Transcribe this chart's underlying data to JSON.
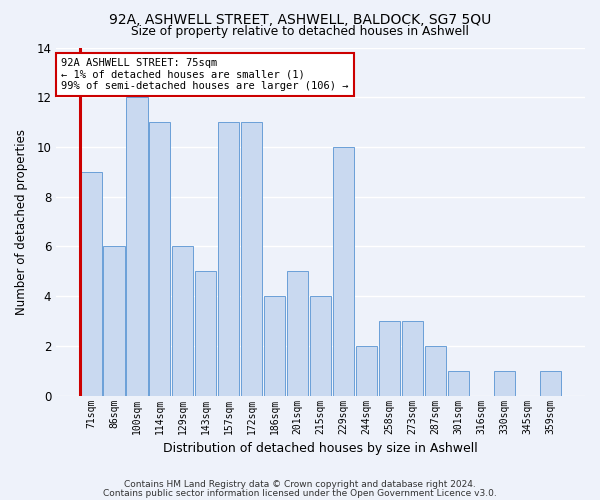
{
  "title1": "92A, ASHWELL STREET, ASHWELL, BALDOCK, SG7 5QU",
  "title2": "Size of property relative to detached houses in Ashwell",
  "xlabel": "Distribution of detached houses by size in Ashwell",
  "ylabel": "Number of detached properties",
  "categories": [
    "71sqm",
    "86sqm",
    "100sqm",
    "114sqm",
    "129sqm",
    "143sqm",
    "157sqm",
    "172sqm",
    "186sqm",
    "201sqm",
    "215sqm",
    "229sqm",
    "244sqm",
    "258sqm",
    "273sqm",
    "287sqm",
    "301sqm",
    "316sqm",
    "330sqm",
    "345sqm",
    "359sqm"
  ],
  "values": [
    9,
    6,
    12,
    11,
    6,
    5,
    11,
    11,
    4,
    5,
    4,
    10,
    2,
    3,
    3,
    2,
    1,
    0,
    1,
    0,
    1
  ],
  "bar_color": "#c9d9f0",
  "bar_edge_color": "#6a9fd8",
  "highlight_color": "#cc0000",
  "annotation_title": "92A ASHWELL STREET: 75sqm",
  "annotation_line1": "← 1% of detached houses are smaller (1)",
  "annotation_line2": "99% of semi-detached houses are larger (106) →",
  "ylim": [
    0,
    14
  ],
  "yticks": [
    0,
    2,
    4,
    6,
    8,
    10,
    12,
    14
  ],
  "footnote1": "Contains HM Land Registry data © Crown copyright and database right 2024.",
  "footnote2": "Contains public sector information licensed under the Open Government Licence v3.0.",
  "background_color": "#eef2fa",
  "grid_color": "#ffffff"
}
